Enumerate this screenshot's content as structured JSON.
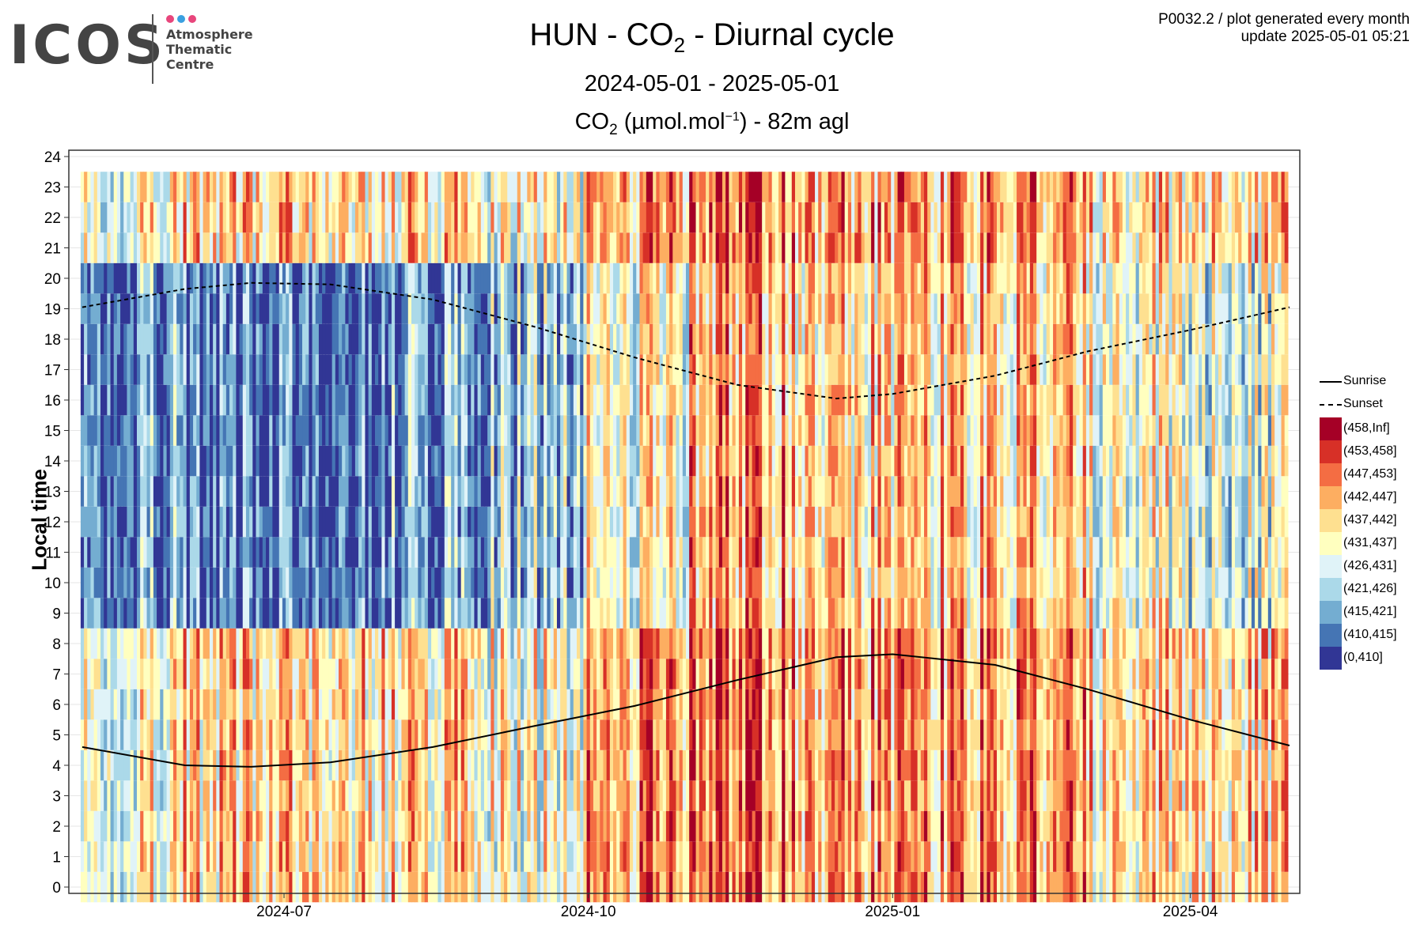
{
  "logo": {
    "word": "ICOS",
    "lines": [
      "Atmosphere",
      "Thematic",
      "Centre"
    ],
    "dot_colors": [
      "#e8467c",
      "#3aa0e0",
      "#e8467c"
    ]
  },
  "header": {
    "title_main": "HUN - CO",
    "title_sub": "2",
    "title_rest": " - Diurnal cycle",
    "period": "2024-05-01 - 2025-05-01",
    "measure_a": "CO",
    "measure_sub": "2",
    "measure_b": " (µmol.mol",
    "measure_sup": "−1",
    "measure_c": ") - 82m agl",
    "meta_line1": "P0032.2 / plot generated every month",
    "meta_line2": "update  2025-05-01 05:21"
  },
  "chart_data": {
    "type": "heatmap",
    "title": "HUN - CO2 - Diurnal cycle",
    "ylabel": "Local time",
    "x_range": [
      "2024-05-01",
      "2025-05-01"
    ],
    "x_ticks": [
      "2024-07",
      "2024-10",
      "2025-01",
      "2025-04"
    ],
    "y_ticks": [
      0,
      1,
      2,
      3,
      4,
      5,
      6,
      7,
      8,
      9,
      10,
      11,
      12,
      13,
      14,
      15,
      16,
      17,
      18,
      19,
      20,
      21,
      22,
      23,
      24
    ],
    "ylim": [
      0,
      24
    ],
    "grid": true,
    "legend_position": "right",
    "bins": [
      {
        "label": "(458,Inf]",
        "color": "#a50026"
      },
      {
        "label": "(453,458]",
        "color": "#d73027"
      },
      {
        "label": "(447,453]",
        "color": "#f46d43"
      },
      {
        "label": "(442,447]",
        "color": "#fdae61"
      },
      {
        "label": "(437,442]",
        "color": "#fee090"
      },
      {
        "label": "(431,437]",
        "color": "#ffffbf"
      },
      {
        "label": "(426,431]",
        "color": "#e0f3f8"
      },
      {
        "label": "(421,426]",
        "color": "#abd9e9"
      },
      {
        "label": "(415,421]",
        "color": "#74add1"
      },
      {
        "label": "(410,415]",
        "color": "#4575b4"
      },
      {
        "label": "(0,410]",
        "color": "#313695"
      }
    ],
    "lines": [
      {
        "name": "Sunrise",
        "style": "solid",
        "x": [
          "2024-05-01",
          "2024-06-01",
          "2024-06-21",
          "2024-07-15",
          "2024-08-15",
          "2024-09-15",
          "2024-10-15",
          "2024-11-15",
          "2024-12-15",
          "2025-01-01",
          "2025-02-01",
          "2025-03-01",
          "2025-04-01",
          "2025-05-01"
        ],
        "y": [
          4.6,
          4.0,
          3.95,
          4.1,
          4.6,
          5.3,
          5.95,
          6.8,
          7.55,
          7.65,
          7.3,
          6.5,
          5.5,
          4.65
        ]
      },
      {
        "name": "Sunset",
        "style": "dashed",
        "x": [
          "2024-05-01",
          "2024-06-01",
          "2024-06-21",
          "2024-07-15",
          "2024-08-15",
          "2024-09-15",
          "2024-10-15",
          "2024-11-15",
          "2024-12-15",
          "2025-01-01",
          "2025-02-01",
          "2025-03-01",
          "2025-04-01",
          "2025-05-01"
        ],
        "y": [
          19.05,
          19.65,
          19.85,
          19.8,
          19.3,
          18.4,
          17.4,
          16.5,
          16.05,
          16.2,
          16.8,
          17.6,
          18.3,
          19.05
        ]
      }
    ],
    "monthly_typical_bin": [
      {
        "month": "2024-05",
        "afternoon": "(415,421]",
        "night": "(431,437]"
      },
      {
        "month": "2024-06",
        "afternoon": "(410,415]",
        "night": "(437,442]"
      },
      {
        "month": "2024-07",
        "afternoon": "(410,415]",
        "night": "(437,442]"
      },
      {
        "month": "2024-08",
        "afternoon": "(415,421]",
        "night": "(437,442]"
      },
      {
        "month": "2024-09",
        "afternoon": "(421,426]",
        "night": "(431,437]"
      },
      {
        "month": "2024-10",
        "afternoon": "(431,437]",
        "night": "(442,447]"
      },
      {
        "month": "2024-11",
        "afternoon": "(442,447]",
        "night": "(447,453]"
      },
      {
        "month": "2024-12",
        "afternoon": "(437,442]",
        "night": "(442,447]"
      },
      {
        "month": "2025-01",
        "afternoon": "(437,442]",
        "night": "(442,447]"
      },
      {
        "month": "2025-02",
        "afternoon": "(437,442]",
        "night": "(442,447]"
      },
      {
        "month": "2025-03",
        "afternoon": "(431,437]",
        "night": "(437,442]"
      },
      {
        "month": "2025-04",
        "afternoon": "(426,431]",
        "night": "(437,442]"
      }
    ]
  }
}
